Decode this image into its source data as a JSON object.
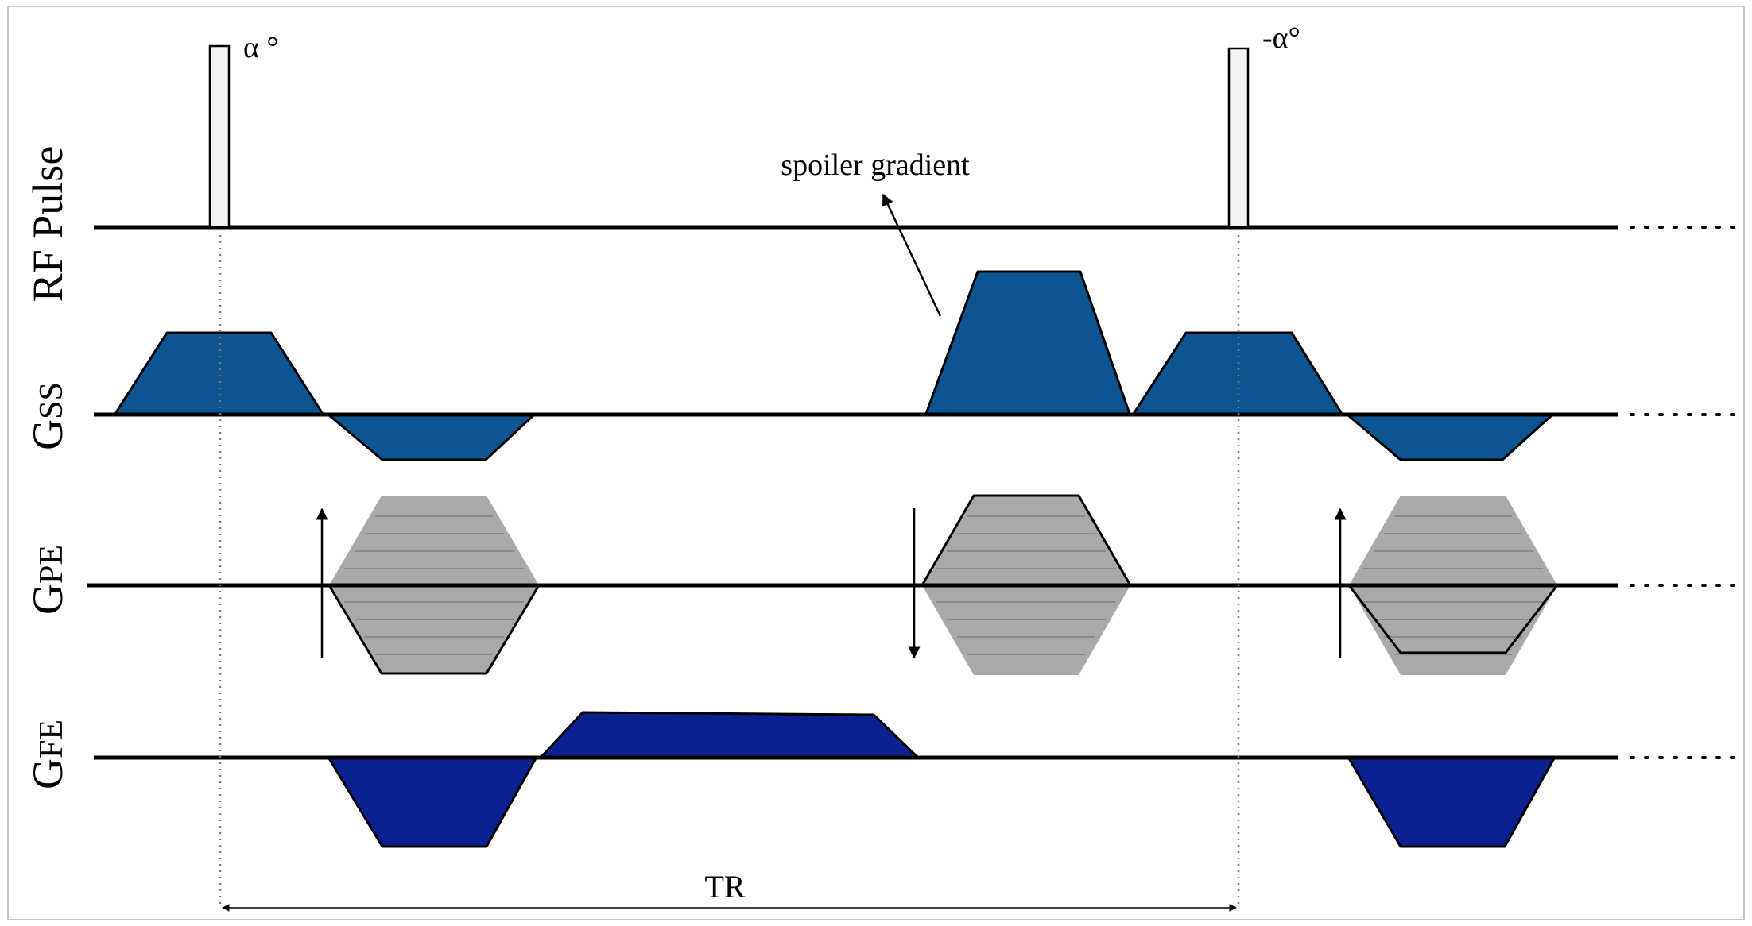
{
  "labels": {
    "rf_axis": "RF Pulse",
    "gss_main": "G",
    "gss_sub": "SS",
    "gpe_main": "G",
    "gpe_sub": "PE",
    "gfe_main": "G",
    "gfe_sub": "FE",
    "pulse_first": "α °",
    "pulse_second": "-α°",
    "spoiler": "spoiler gradient",
    "tr": "TR"
  },
  "colors": {
    "slice_gradient": "#0c5591",
    "frequency_gradient": "#0a2291",
    "phase_encode": "#a9a9a9",
    "pulse_fill": "#f4f4f4"
  }
}
